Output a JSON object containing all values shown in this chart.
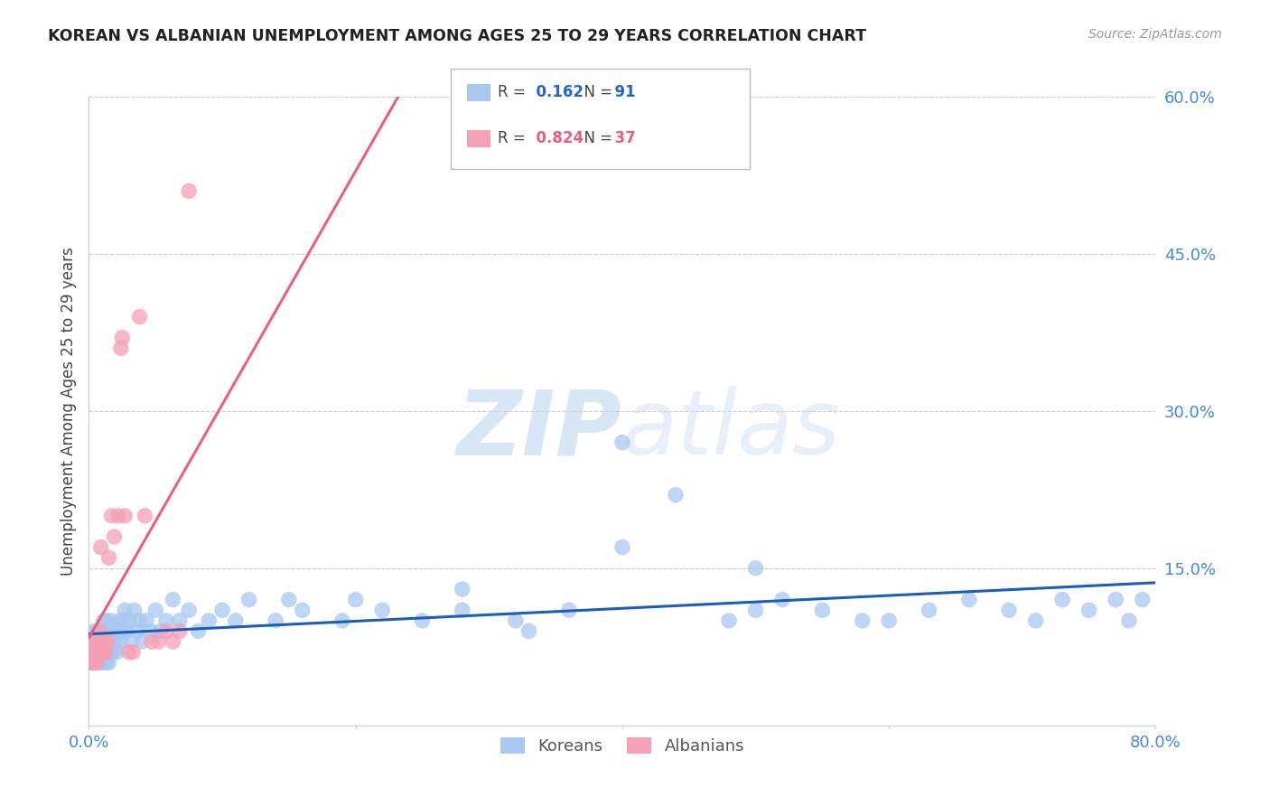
{
  "title": "KOREAN VS ALBANIAN UNEMPLOYMENT AMONG AGES 25 TO 29 YEARS CORRELATION CHART",
  "source": "Source: ZipAtlas.com",
  "ylabel": "Unemployment Among Ages 25 to 29 years",
  "xlim": [
    0.0,
    0.8
  ],
  "ylim": [
    0.0,
    0.6
  ],
  "ytick_vals": [
    0.0,
    0.15,
    0.3,
    0.45,
    0.6
  ],
  "ytick_labels": [
    "",
    "15.0%",
    "30.0%",
    "45.0%",
    "60.0%"
  ],
  "xtick_vals": [
    0.0,
    0.8
  ],
  "xtick_labels": [
    "0.0%",
    "80.0%"
  ],
  "korean_R": 0.162,
  "korean_N": 91,
  "albanian_R": 0.824,
  "albanian_N": 37,
  "korean_color": "#a8c8f0",
  "albanian_color": "#f4a0b5",
  "korean_line_color": "#1a5eb8",
  "albanian_line_color": "#e8607a",
  "watermark_zip": "ZIP",
  "watermark_atlas": "atlas",
  "background_color": "#ffffff",
  "grid_color": "#cccccc",
  "title_color": "#222222",
  "axis_tick_color": "#4488dd",
  "ylabel_color": "#444444",
  "korean_x": [
    0.001,
    0.002,
    0.003,
    0.003,
    0.004,
    0.004,
    0.005,
    0.005,
    0.006,
    0.006,
    0.007,
    0.007,
    0.008,
    0.008,
    0.009,
    0.009,
    0.01,
    0.01,
    0.011,
    0.011,
    0.012,
    0.012,
    0.013,
    0.013,
    0.014,
    0.015,
    0.015,
    0.016,
    0.016,
    0.017,
    0.018,
    0.019,
    0.02,
    0.021,
    0.022,
    0.023,
    0.024,
    0.025,
    0.026,
    0.027,
    0.028,
    0.03,
    0.032,
    0.034,
    0.036,
    0.038,
    0.04,
    0.043,
    0.046,
    0.05,
    0.054,
    0.058,
    0.063,
    0.068,
    0.075,
    0.082,
    0.09,
    0.1,
    0.11,
    0.12,
    0.14,
    0.16,
    0.19,
    0.22,
    0.25,
    0.28,
    0.32,
    0.36,
    0.4,
    0.44,
    0.48,
    0.5,
    0.52,
    0.55,
    0.58,
    0.6,
    0.63,
    0.66,
    0.69,
    0.71,
    0.73,
    0.75,
    0.77,
    0.78,
    0.79,
    0.4,
    0.5,
    0.28,
    0.33,
    0.2,
    0.15
  ],
  "korean_y": [
    0.07,
    0.07,
    0.06,
    0.08,
    0.07,
    0.09,
    0.06,
    0.08,
    0.07,
    0.09,
    0.06,
    0.08,
    0.07,
    0.09,
    0.06,
    0.08,
    0.07,
    0.09,
    0.06,
    0.1,
    0.07,
    0.09,
    0.06,
    0.1,
    0.07,
    0.06,
    0.09,
    0.07,
    0.1,
    0.08,
    0.07,
    0.09,
    0.08,
    0.07,
    0.09,
    0.1,
    0.08,
    0.09,
    0.1,
    0.11,
    0.09,
    0.1,
    0.08,
    0.11,
    0.09,
    0.1,
    0.08,
    0.1,
    0.09,
    0.11,
    0.09,
    0.1,
    0.12,
    0.1,
    0.11,
    0.09,
    0.1,
    0.11,
    0.1,
    0.12,
    0.1,
    0.11,
    0.1,
    0.11,
    0.1,
    0.11,
    0.1,
    0.11,
    0.27,
    0.22,
    0.1,
    0.11,
    0.12,
    0.11,
    0.1,
    0.1,
    0.11,
    0.12,
    0.11,
    0.1,
    0.12,
    0.11,
    0.12,
    0.1,
    0.12,
    0.17,
    0.15,
    0.13,
    0.09,
    0.12,
    0.12
  ],
  "albanian_x": [
    0.001,
    0.002,
    0.003,
    0.003,
    0.004,
    0.005,
    0.005,
    0.006,
    0.006,
    0.007,
    0.007,
    0.008,
    0.008,
    0.009,
    0.01,
    0.01,
    0.011,
    0.012,
    0.013,
    0.014,
    0.015,
    0.017,
    0.019,
    0.022,
    0.024,
    0.025,
    0.027,
    0.03,
    0.033,
    0.038,
    0.042,
    0.047,
    0.052,
    0.058,
    0.063,
    0.068,
    0.075
  ],
  "albanian_y": [
    0.06,
    0.07,
    0.06,
    0.07,
    0.06,
    0.07,
    0.08,
    0.06,
    0.08,
    0.07,
    0.08,
    0.07,
    0.09,
    0.17,
    0.07,
    0.08,
    0.07,
    0.08,
    0.07,
    0.08,
    0.16,
    0.2,
    0.18,
    0.2,
    0.36,
    0.37,
    0.2,
    0.07,
    0.07,
    0.39,
    0.2,
    0.08,
    0.08,
    0.09,
    0.08,
    0.09,
    0.51
  ]
}
